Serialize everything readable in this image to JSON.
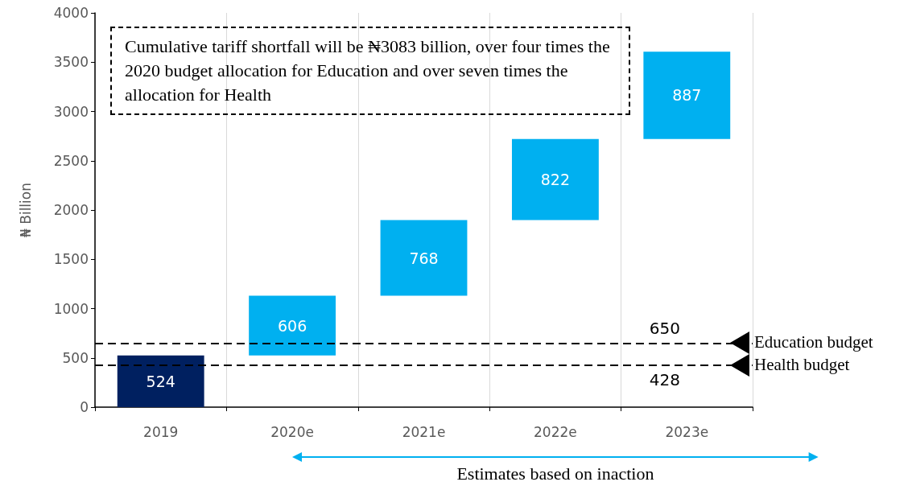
{
  "chart_data": {
    "type": "bar",
    "ylabel": "₦ Billion",
    "categories": [
      "2019",
      "2020e",
      "2021e",
      "2022e",
      "2023e"
    ],
    "values": [
      524,
      606,
      768,
      822,
      887
    ],
    "base": [
      0,
      524,
      1130,
      1898,
      2720
    ],
    "colors": [
      "#002060",
      "#00b0f0",
      "#00b0f0",
      "#00b0f0",
      "#00b0f0"
    ],
    "ylim": [
      0,
      4000
    ],
    "yticks": [
      0,
      500,
      1000,
      1500,
      2000,
      2500,
      3000,
      3500,
      4000
    ],
    "grid": "x",
    "data_labels": true,
    "ref_lines": [
      {
        "axis": "y",
        "value": 650,
        "label": "650",
        "color": "#000000",
        "line_style": "dashed"
      },
      {
        "axis": "y",
        "value": 428,
        "label": "428",
        "color": "#000000",
        "line_style": "dashed"
      }
    ],
    "annotations": [
      "Cumulative tariff shortfall will be ₦3083 billion, over four times the 2020 budget allocation for Education and over seven times the allocation for Health",
      "Education budget",
      "Health budget",
      "Estimates based on inaction"
    ]
  }
}
